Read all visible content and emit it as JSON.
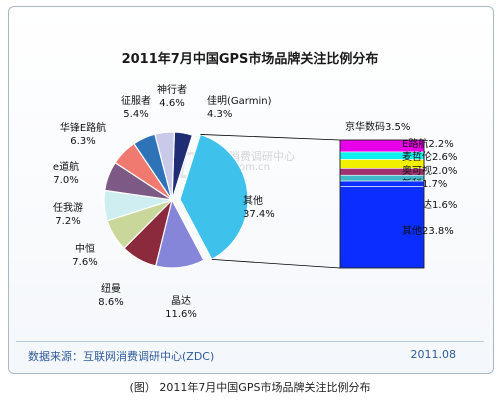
{
  "chart_data": {
    "type": "pie",
    "title": "2011年7月中国GPS市场品牌关注比例分布",
    "slices": [
      {
        "label": "佳明(Garmin)",
        "value": 4.3,
        "pct": "4.3%",
        "color": "#1f2e74"
      },
      {
        "label": "其他",
        "value": 37.4,
        "pct": "37.4%",
        "color": "#3ec1ea"
      },
      {
        "label": "晶达",
        "value": 11.6,
        "pct": "11.6%",
        "color": "#8585d9"
      },
      {
        "label": "纽曼",
        "value": 8.6,
        "pct": "8.6%",
        "color": "#8a2a3c"
      },
      {
        "label": "中恒",
        "value": 7.6,
        "pct": "7.6%",
        "color": "#c9d89a"
      },
      {
        "label": "任我游",
        "value": 7.2,
        "pct": "7.2%",
        "color": "#cfeef2"
      },
      {
        "label": "e道航",
        "value": 7.0,
        "pct": "7.0%",
        "color": "#7d5a86"
      },
      {
        "label": "华锋E路航",
        "value": 6.3,
        "pct": "6.3%",
        "color": "#f07a6f"
      },
      {
        "label": "征服者",
        "value": 5.4,
        "pct": "5.4%",
        "color": "#2e72b8"
      },
      {
        "label": "神行者",
        "value": 4.6,
        "pct": "4.6%",
        "color": "#c9c9ea"
      }
    ],
    "breakdown": {
      "of": "其他",
      "items": [
        {
          "label": "京华数码",
          "pct": "3.5%",
          "value": 3.5,
          "color": "#e800e8"
        },
        {
          "label": "E路航",
          "pct": "2.2%",
          "value": 2.2,
          "color": "#0ff0f0"
        },
        {
          "label": "麦哲伦",
          "pct": "2.6%",
          "value": 2.6,
          "color": "#f0f000"
        },
        {
          "label": "奥可视",
          "pct": "2.0%",
          "value": 2.0,
          "color": "#a03070"
        },
        {
          "label": "新科",
          "pct": "1.7%",
          "value": 1.7,
          "color": "#40b8c8"
        },
        {
          "label": "卡仕达",
          "pct": "1.6%",
          "value": 1.6,
          "color": "#0b2dff"
        },
        {
          "label": "其他",
          "pct": "23.8%",
          "value": 23.8,
          "color": "#0b2dff"
        }
      ]
    }
  },
  "watermark": {
    "big": "ZDC",
    "line1": "互联网消费调研中心",
    "line2": "zdc.zol.com.cn"
  },
  "footer": {
    "source": "数据来源：互联网消费调研中心(ZDC)",
    "date": "2011.08"
  },
  "caption": "(图） 2011年7月中国GPS市场品牌关注比例分布"
}
